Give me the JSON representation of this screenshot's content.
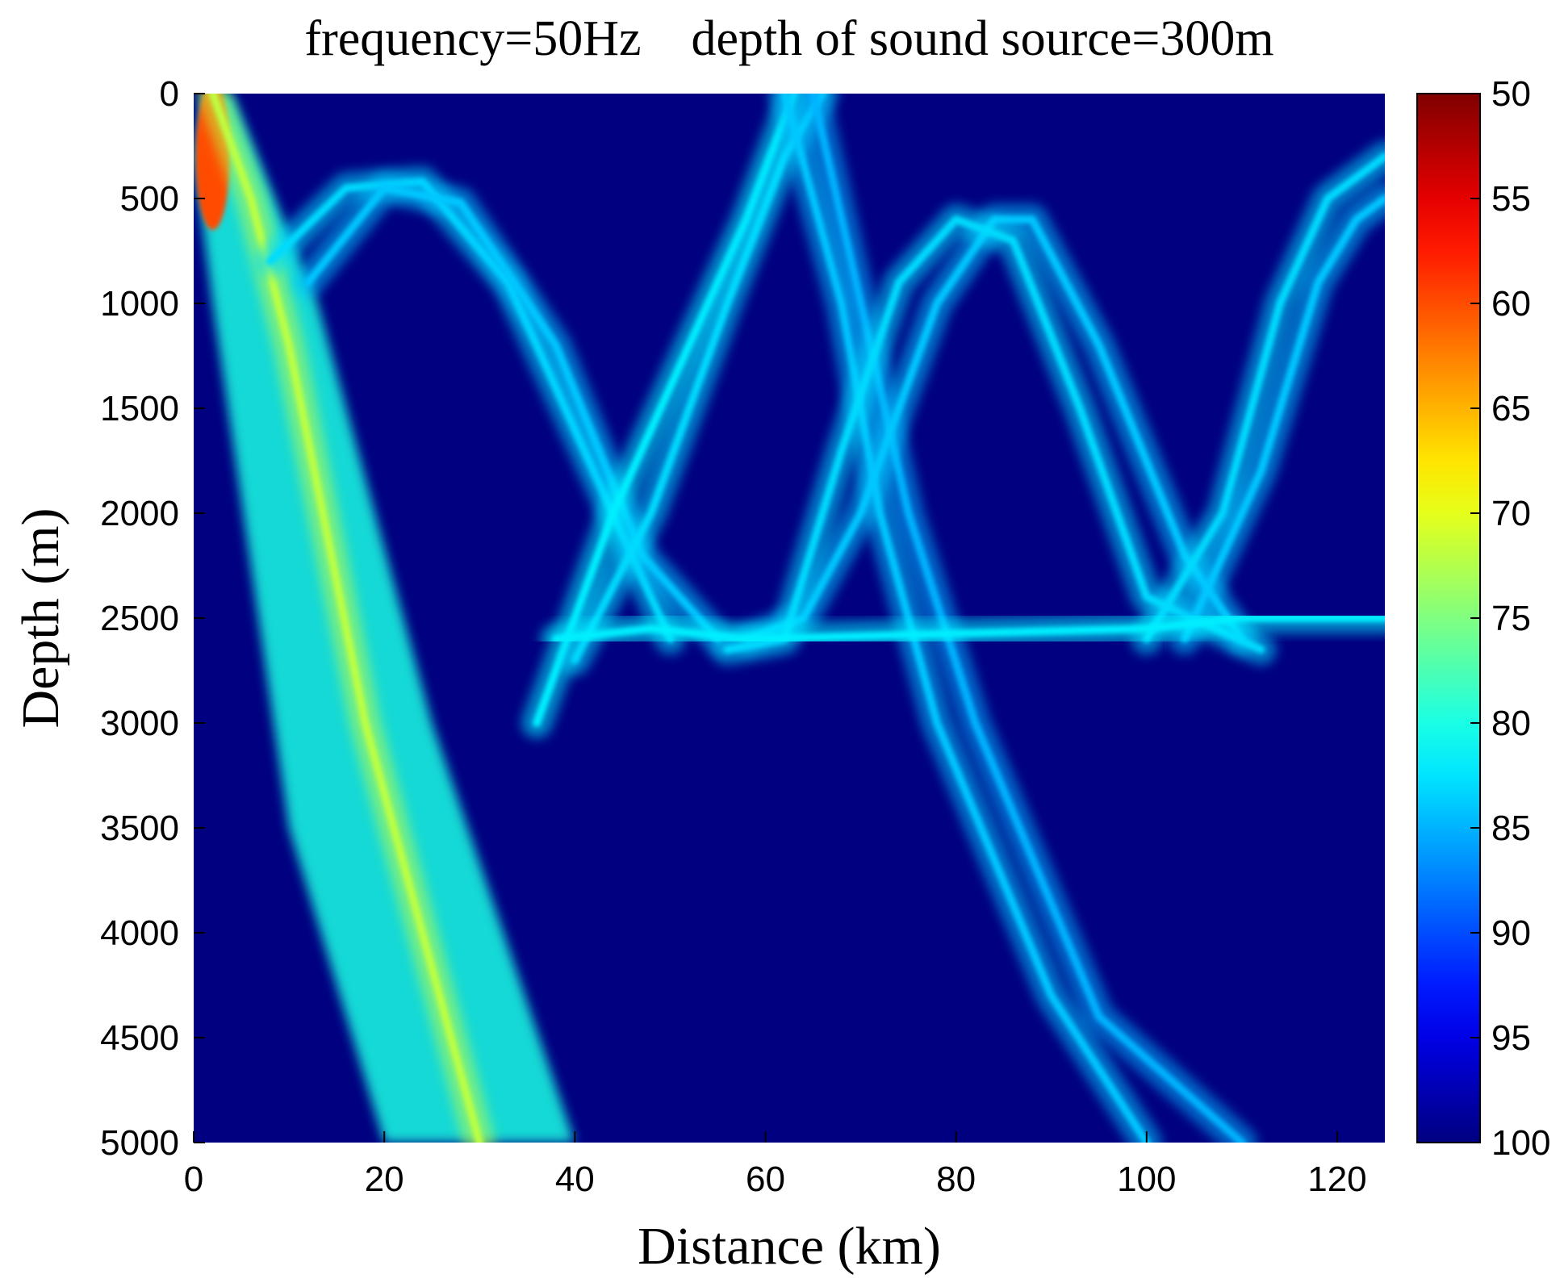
{
  "chart_data": {
    "type": "heatmap",
    "title": "frequency=50Hz    depth of sound source=300m",
    "xlabel": "Distance (km)",
    "ylabel": "Depth (m)",
    "xlim": [
      0,
      125
    ],
    "ylim": [
      0,
      5000
    ],
    "y_reversed": true,
    "x_ticks": [
      0,
      20,
      40,
      60,
      80,
      100,
      120
    ],
    "y_ticks": [
      0,
      500,
      1000,
      1500,
      2000,
      2500,
      3000,
      3500,
      4000,
      4500,
      5000
    ],
    "colorbar": {
      "range": [
        50,
        100
      ],
      "ticks": [
        50,
        55,
        60,
        65,
        70,
        75,
        80,
        85,
        90,
        95,
        100
      ],
      "colormap": "jet",
      "reversed": true
    },
    "background_value": 100,
    "source": {
      "distance_km": 0,
      "depth_m": 300,
      "frequency_hz": 50
    },
    "features": [
      {
        "name": "direct-beam-fan",
        "value": 80,
        "outline": [
          [
            1,
            0
          ],
          [
            4,
            0
          ],
          [
            13,
            1000
          ],
          [
            25,
            3000
          ],
          [
            40,
            5000
          ],
          [
            20,
            5000
          ],
          [
            10,
            3500
          ],
          [
            2,
            1000
          ],
          [
            0,
            300
          ]
        ]
      },
      {
        "name": "source-hotspot",
        "value": 60,
        "center": [
          2,
          300
        ],
        "radius_km": 1.8,
        "radius_m": 350
      },
      {
        "name": "direct-ridge-1",
        "value": 72,
        "points": [
          [
            2,
            0
          ],
          [
            6,
            500
          ],
          [
            10,
            1200
          ],
          [
            18,
            3000
          ],
          [
            30,
            5000
          ]
        ]
      },
      {
        "name": "surface-bounce-arc-1",
        "value": 83,
        "points": [
          [
            8,
            800
          ],
          [
            16,
            450
          ],
          [
            24,
            420
          ],
          [
            33,
            900
          ],
          [
            42,
            1800
          ],
          [
            50,
            2600
          ]
        ]
      },
      {
        "name": "surface-bounce-arc-2",
        "value": 84,
        "points": [
          [
            12,
            900
          ],
          [
            20,
            450
          ],
          [
            28,
            520
          ],
          [
            38,
            1200
          ],
          [
            47,
            2200
          ],
          [
            55,
            2600
          ]
        ]
      },
      {
        "name": "second-zone-up-1",
        "value": 82,
        "points": [
          [
            36,
            3000
          ],
          [
            44,
            2000
          ],
          [
            52,
            1200
          ],
          [
            58,
            600
          ],
          [
            63,
            0
          ]
        ]
      },
      {
        "name": "second-zone-up-2",
        "value": 83,
        "points": [
          [
            40,
            2700
          ],
          [
            48,
            2000
          ],
          [
            56,
            1000
          ],
          [
            62,
            300
          ],
          [
            66,
            0
          ]
        ]
      },
      {
        "name": "second-zone-down-1",
        "value": 84,
        "points": [
          [
            62,
            0
          ],
          [
            68,
            1000
          ],
          [
            72,
            2000
          ],
          [
            78,
            3000
          ],
          [
            90,
            4300
          ],
          [
            100,
            5000
          ]
        ]
      },
      {
        "name": "second-zone-down-2",
        "value": 85,
        "points": [
          [
            65,
            0
          ],
          [
            70,
            1000
          ],
          [
            75,
            2000
          ],
          [
            82,
            3000
          ],
          [
            95,
            4400
          ],
          [
            110,
            5000
          ]
        ]
      },
      {
        "name": "deep-bounce-arc-1",
        "value": 84,
        "points": [
          [
            58,
            2600
          ],
          [
            64,
            2500
          ],
          [
            70,
            2000
          ],
          [
            78,
            1000
          ],
          [
            84,
            600
          ],
          [
            88,
            600
          ],
          [
            95,
            1200
          ],
          [
            104,
            2200
          ],
          [
            110,
            2600
          ]
        ]
      },
      {
        "name": "deep-bounce-arc-2",
        "value": 83,
        "points": [
          [
            56,
            2650
          ],
          [
            62,
            2600
          ],
          [
            68,
            1700
          ],
          [
            74,
            900
          ],
          [
            80,
            600
          ],
          [
            86,
            700
          ],
          [
            93,
            1500
          ],
          [
            100,
            2400
          ],
          [
            112,
            2650
          ]
        ]
      },
      {
        "name": "third-zone-up-1",
        "value": 83,
        "points": [
          [
            100,
            2600
          ],
          [
            108,
            2000
          ],
          [
            114,
            1000
          ],
          [
            119,
            500
          ],
          [
            125,
            300
          ]
        ]
      },
      {
        "name": "third-zone-up-2",
        "value": 84,
        "points": [
          [
            104,
            2600
          ],
          [
            112,
            1800
          ],
          [
            118,
            900
          ],
          [
            122,
            600
          ],
          [
            125,
            500
          ]
        ]
      },
      {
        "name": "convergence-row-2500",
        "value": 82,
        "points": [
          [
            38,
            2600
          ],
          [
            48,
            2550
          ],
          [
            58,
            2600
          ],
          [
            100,
            2550
          ],
          [
            110,
            2500
          ],
          [
            125,
            2500
          ]
        ]
      }
    ]
  }
}
